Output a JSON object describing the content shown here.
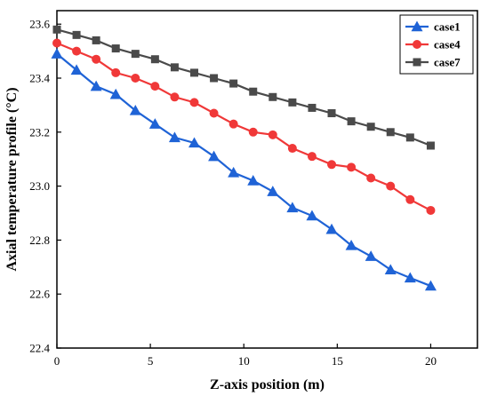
{
  "chart_data": {
    "type": "line",
    "xlabel": "Z-axis position (m)",
    "ylabel": "Axial temperature profile (°C)",
    "xlim": [
      0,
      22.5
    ],
    "ylim": [
      22.4,
      23.65
    ],
    "xticks": [
      0,
      5,
      10,
      15,
      20
    ],
    "yticks": [
      22.4,
      22.6,
      22.8,
      23.0,
      23.2,
      23.4,
      23.6
    ],
    "xtick_labels": [
      "0",
      "5",
      "10",
      "15",
      "20"
    ],
    "ytick_labels": [
      "22.4",
      "22.6",
      "22.8",
      "23.0",
      "23.2",
      "23.4",
      "23.6"
    ],
    "grid": false,
    "legend_position": "top-right",
    "series": [
      {
        "name": "case1",
        "color": "#1f63d6",
        "marker": "triangle",
        "x": [
          0,
          1.05,
          2.1,
          3.15,
          4.2,
          5.25,
          6.3,
          7.35,
          8.4,
          9.45,
          10.5,
          11.55,
          12.6,
          13.65,
          14.7,
          15.75,
          16.8,
          17.85,
          18.9,
          20.0
        ],
        "y": [
          23.49,
          23.43,
          23.37,
          23.34,
          23.28,
          23.23,
          23.18,
          23.16,
          23.11,
          23.05,
          23.02,
          22.98,
          22.92,
          22.89,
          22.84,
          22.78,
          22.74,
          22.69,
          22.66,
          22.63
        ]
      },
      {
        "name": "case4",
        "color": "#f03838",
        "marker": "circle",
        "x": [
          0,
          1.05,
          2.1,
          3.15,
          4.2,
          5.25,
          6.3,
          7.35,
          8.4,
          9.45,
          10.5,
          11.55,
          12.6,
          13.65,
          14.7,
          15.75,
          16.8,
          17.85,
          18.9,
          20.0
        ],
        "y": [
          23.53,
          23.5,
          23.47,
          23.42,
          23.4,
          23.37,
          23.33,
          23.31,
          23.27,
          23.23,
          23.2,
          23.19,
          23.14,
          23.11,
          23.08,
          23.07,
          23.03,
          23.0,
          22.95,
          22.91
        ]
      },
      {
        "name": "case7",
        "color": "#4a4a4a",
        "marker": "square",
        "x": [
          0,
          1.05,
          2.1,
          3.15,
          4.2,
          5.25,
          6.3,
          7.35,
          8.4,
          9.45,
          10.5,
          11.55,
          12.6,
          13.65,
          14.7,
          15.75,
          16.8,
          17.85,
          18.9,
          20.0
        ],
        "y": [
          23.58,
          23.56,
          23.54,
          23.51,
          23.49,
          23.47,
          23.44,
          23.42,
          23.4,
          23.38,
          23.35,
          23.33,
          23.31,
          23.29,
          23.27,
          23.24,
          23.22,
          23.2,
          23.18,
          23.15
        ]
      }
    ]
  }
}
